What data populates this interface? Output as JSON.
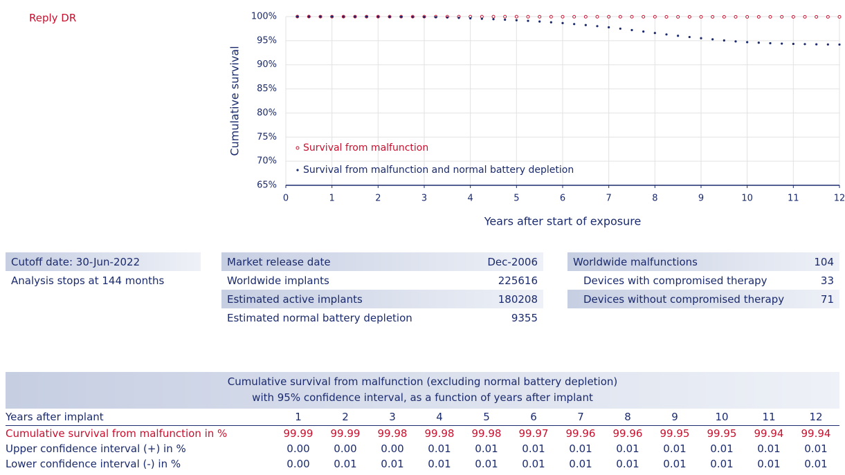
{
  "header": {
    "title": "Reply DR"
  },
  "chart_data": {
    "type": "scatter",
    "x": [
      0.25,
      0.5,
      0.75,
      1,
      1.25,
      1.5,
      1.75,
      2,
      2.25,
      2.5,
      2.75,
      3,
      3.25,
      3.5,
      3.75,
      4,
      4.25,
      4.5,
      4.75,
      5,
      5.25,
      5.5,
      5.75,
      6,
      6.25,
      6.5,
      6.75,
      7,
      7.25,
      7.5,
      7.75,
      8,
      8.25,
      8.5,
      8.75,
      9,
      9.25,
      9.5,
      9.75,
      10,
      10.25,
      10.5,
      10.75,
      11,
      11.25,
      11.5,
      11.75,
      12
    ],
    "series": [
      {
        "name": "Survival from malfunction",
        "color": "#c8102e",
        "marker": "open-circle",
        "values": [
          100,
          100,
          99.99,
          99.99,
          99.99,
          99.99,
          99.99,
          99.99,
          99.98,
          99.98,
          99.98,
          99.98,
          99.98,
          99.98,
          99.98,
          99.98,
          99.98,
          99.98,
          99.98,
          99.98,
          99.97,
          99.97,
          99.97,
          99.97,
          99.96,
          99.96,
          99.96,
          99.96,
          99.96,
          99.96,
          99.96,
          99.96,
          99.95,
          99.95,
          99.95,
          99.95,
          99.95,
          99.95,
          99.95,
          99.95,
          99.94,
          99.94,
          99.94,
          99.94,
          99.94,
          99.94,
          99.94,
          99.94
        ]
      },
      {
        "name": "Survival from malfunction and normal battery depletion",
        "color": "#1a2a6c",
        "marker": "dot",
        "values": [
          100,
          100,
          100,
          100,
          99.99,
          99.99,
          99.99,
          99.98,
          99.97,
          99.96,
          99.95,
          99.93,
          99.88,
          99.82,
          99.74,
          99.65,
          99.56,
          99.46,
          99.36,
          99.25,
          99.12,
          98.98,
          98.82,
          98.65,
          98.45,
          98.24,
          98.02,
          97.78,
          97.5,
          97.2,
          96.9,
          96.6,
          96.3,
          96.02,
          95.76,
          95.52,
          95.28,
          95.05,
          94.85,
          94.7,
          94.58,
          94.48,
          94.4,
          94.34,
          94.29,
          94.25,
          94.22,
          94.2
        ]
      }
    ],
    "xlabel": "Years after start of exposure",
    "ylabel": "Cumulative survival",
    "xlim": [
      0,
      12
    ],
    "ylim": [
      65,
      100
    ],
    "xticks": [
      0,
      1,
      2,
      3,
      4,
      5,
      6,
      7,
      8,
      9,
      10,
      11,
      12
    ],
    "yticks": [
      {
        "value": 65,
        "label": "65%"
      },
      {
        "value": 70,
        "label": "70%"
      },
      {
        "value": 75,
        "label": "75%"
      },
      {
        "value": 80,
        "label": "80%"
      },
      {
        "value": 85,
        "label": "85%"
      },
      {
        "value": 90,
        "label": "90%"
      },
      {
        "value": 95,
        "label": "95%"
      },
      {
        "value": 100,
        "label": "100%"
      }
    ],
    "grid": true,
    "legend": "lower left"
  },
  "info": {
    "left": [
      "Cutoff date:  30-Jun-2022",
      "Analysis stops at 144 months"
    ],
    "middle": [
      [
        "Market release date",
        "Dec-2006"
      ],
      [
        "Worldwide implants",
        "225616"
      ],
      [
        "Estimated active implants",
        "180208"
      ],
      [
        "Estimated normal battery depletion",
        "9355"
      ]
    ],
    "right": [
      [
        "Worldwide malfunctions",
        "104"
      ],
      [
        "Devices with compromised therapy",
        "33"
      ],
      [
        "Devices without compromised therapy",
        "71"
      ]
    ]
  },
  "table": {
    "title": [
      "Cumulative survival from malfunction (excluding normal battery depletion)",
      "with 95% confidence interval, as a function of years after implant"
    ],
    "header": [
      "Years after implant",
      "1",
      "2",
      "3",
      "4",
      "5",
      "6",
      "7",
      "8",
      "9",
      "10",
      "11",
      "12"
    ],
    "rows": [
      [
        "Cumulative survival from malfunction in %",
        "99.99",
        "99.99",
        "99.98",
        "99.98",
        "99.98",
        "99.97",
        "99.96",
        "99.96",
        "99.95",
        "99.95",
        "99.94",
        "99.94"
      ],
      [
        "Upper confidence interval (+) in %",
        "0.00",
        "0.00",
        "0.00",
        "0.01",
        "0.01",
        "0.01",
        "0.01",
        "0.01",
        "0.01",
        "0.01",
        "0.01",
        "0.01"
      ],
      [
        "Lower confidence interval (-) in %",
        "0.00",
        "0.01",
        "0.01",
        "0.01",
        "0.01",
        "0.01",
        "0.01",
        "0.01",
        "0.01",
        "0.01",
        "0.01",
        "0.01"
      ]
    ]
  }
}
